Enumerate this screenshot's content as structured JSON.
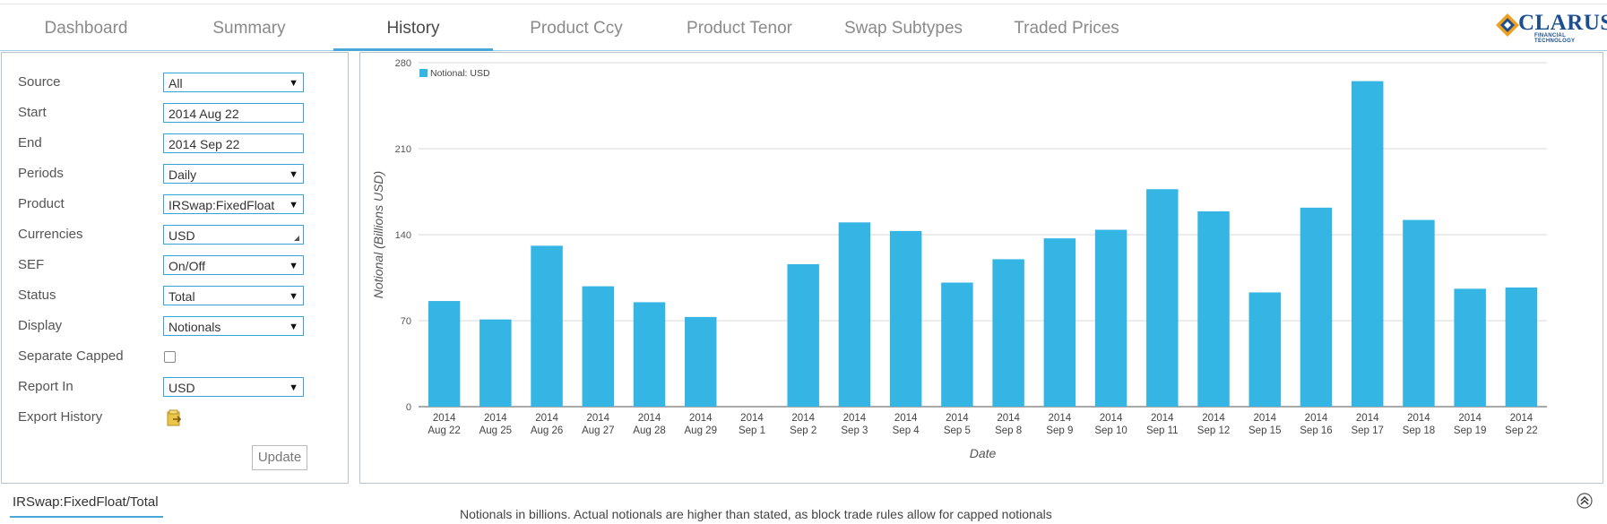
{
  "tabs": [
    {
      "label": "Dashboard",
      "active": false
    },
    {
      "label": "Summary",
      "active": false
    },
    {
      "label": "History",
      "active": true
    },
    {
      "label": "Product Ccy",
      "active": false
    },
    {
      "label": "Product Tenor",
      "active": false
    },
    {
      "label": "Swap Subtypes",
      "active": false
    },
    {
      "label": "Traded Prices",
      "active": false
    }
  ],
  "logo": {
    "name": "CLARUS",
    "tagline": "FINANCIAL TECHNOLOGY"
  },
  "form": {
    "source": {
      "label": "Source",
      "value": "All"
    },
    "start": {
      "label": "Start",
      "value": "2014 Aug 22"
    },
    "end": {
      "label": "End",
      "value": "2014 Sep 22"
    },
    "periods": {
      "label": "Periods",
      "value": "Daily"
    },
    "product": {
      "label": "Product",
      "value": "IRSwap:FixedFloat"
    },
    "currencies": {
      "label": "Currencies",
      "value": "USD"
    },
    "sef": {
      "label": "SEF",
      "value": "On/Off"
    },
    "status": {
      "label": "Status",
      "value": "Total"
    },
    "display": {
      "label": "Display",
      "value": "Notionals"
    },
    "separate_capped": {
      "label": "Separate Capped",
      "checked": false
    },
    "report_in": {
      "label": "Report In",
      "value": "USD"
    },
    "export_history": {
      "label": "Export History"
    },
    "update_label": "Update"
  },
  "chart_data": {
    "type": "bar",
    "categories": [
      "2014 Aug 22",
      "2014 Aug 25",
      "2014 Aug 26",
      "2014 Aug 27",
      "2014 Aug 28",
      "2014 Aug 29",
      "2014 Sep 1",
      "2014 Sep 2",
      "2014 Sep 3",
      "2014 Sep 4",
      "2014 Sep 5",
      "2014 Sep 8",
      "2014 Sep 9",
      "2014 Sep 10",
      "2014 Sep 11",
      "2014 Sep 12",
      "2014 Sep 15",
      "2014 Sep 16",
      "2014 Sep 17",
      "2014 Sep 18",
      "2014 Sep 19",
      "2014 Sep 22"
    ],
    "category_lines": [
      [
        "2014",
        "Aug 22"
      ],
      [
        "2014",
        "Aug 25"
      ],
      [
        "2014",
        "Aug 26"
      ],
      [
        "2014",
        "Aug 27"
      ],
      [
        "2014",
        "Aug 28"
      ],
      [
        "2014",
        "Aug 29"
      ],
      [
        "2014",
        "Sep 1"
      ],
      [
        "2014",
        "Sep 2"
      ],
      [
        "2014",
        "Sep 3"
      ],
      [
        "2014",
        "Sep 4"
      ],
      [
        "2014",
        "Sep 5"
      ],
      [
        "2014",
        "Sep 8"
      ],
      [
        "2014",
        "Sep 9"
      ],
      [
        "2014",
        "Sep 10"
      ],
      [
        "2014",
        "Sep 11"
      ],
      [
        "2014",
        "Sep 12"
      ],
      [
        "2014",
        "Sep 15"
      ],
      [
        "2014",
        "Sep 16"
      ],
      [
        "2014",
        "Sep 17"
      ],
      [
        "2014",
        "Sep 18"
      ],
      [
        "2014",
        "Sep 19"
      ],
      [
        "2014",
        "Sep 22"
      ]
    ],
    "series": [
      {
        "name": "Notional: USD",
        "color": "#35b5e4",
        "values": [
          86,
          71,
          131,
          98,
          85,
          73,
          0,
          116,
          150,
          143,
          101,
          120,
          137,
          144,
          177,
          159,
          93,
          162,
          265,
          152,
          96,
          97
        ]
      }
    ],
    "xlabel": "Date",
    "ylabel": "Notional (Billions USD)",
    "yticks": [
      0,
      70,
      140,
      210,
      280
    ],
    "ylim": [
      0,
      280
    ],
    "grid": true,
    "legend": "top-left"
  },
  "footer": {
    "tab_label": "IRSwap:FixedFloat/Total",
    "note": "Notionals in billions. Actual notionals are higher than stated, as block trade rules allow for capped notionals"
  },
  "colors": {
    "accent": "#4aa8d8",
    "bar": "#35b5e4",
    "logo": "#1b4f8f"
  }
}
